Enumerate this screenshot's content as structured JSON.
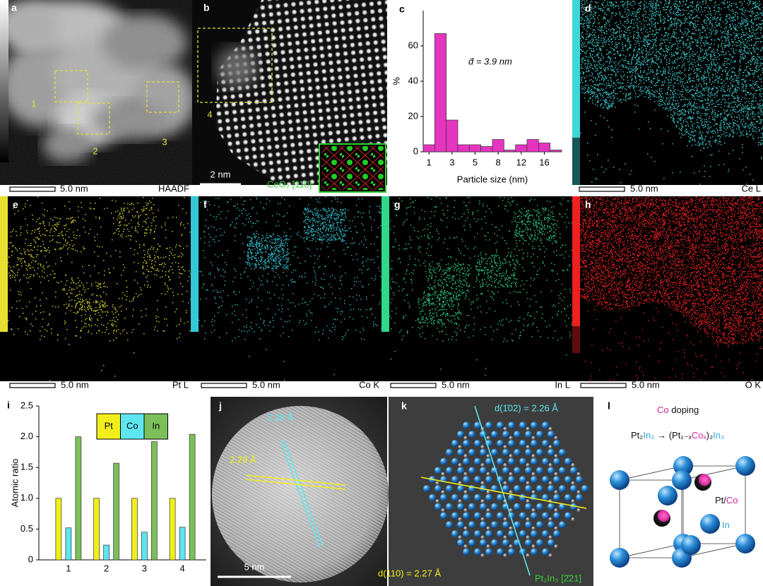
{
  "chart_data": [
    {
      "type": "bar",
      "categories": [
        1,
        null,
        3,
        null,
        5,
        null,
        8,
        null,
        12,
        null,
        16,
        null
      ],
      "values": [
        4,
        67,
        18,
        4,
        4,
        3,
        7,
        1,
        4,
        7,
        5,
        1
      ],
      "color": "#e535c0",
      "ylim": [
        0,
        80
      ],
      "yticks": [
        0,
        20,
        40,
        60
      ],
      "y_label": "%",
      "x_label": "Particle size (nm)",
      "annotation": "d̄ = 3.9 nm"
    },
    {
      "type": "grouped_bar",
      "categories": [
        1,
        2,
        3,
        4
      ],
      "series": [
        {
          "name": "Pt",
          "color": "#f2ee1c",
          "values": [
            1,
            1,
            1,
            1
          ]
        },
        {
          "name": "Co",
          "color": "#5ee6f0",
          "values": [
            0.52,
            0.24,
            0.45,
            0.53
          ]
        },
        {
          "name": "In",
          "color": "#7cbf5a",
          "values": [
            2.0,
            1.57,
            1.92,
            2.04
          ]
        }
      ],
      "ylim": [
        0,
        2.5
      ],
      "yticks": [
        0,
        0.5,
        {
          "value": 1,
          "label": "1.0"
        },
        1.5,
        {
          "value": 2,
          "label": "2.0"
        },
        2.5
      ],
      "y_label": "Atomic ratio"
    }
  ],
  "panels": {
    "a": {
      "label": "a",
      "regions": [
        "1",
        "2",
        "3"
      ],
      "scale": "5.0 nm",
      "signal": "HAADF"
    },
    "b": {
      "label": "b",
      "region": "4",
      "scale": "2 nm",
      "zone": "CeO₂ [110]"
    },
    "c": {
      "label": "c"
    },
    "maps": [
      {
        "label": "d",
        "scale": "5.0 nm",
        "signal": "Ce  L",
        "color": "#3fd6d8"
      },
      {
        "label": "e",
        "scale": "5.0 nm",
        "signal": "Pt  L",
        "color": "#e8e030"
      },
      {
        "label": "f",
        "scale": "5.0 nm",
        "signal": "Co  K",
        "color": "#34c8d6"
      },
      {
        "label": "g",
        "scale": "5.0 nm",
        "signal": "In  L",
        "color": "#2fd88a"
      },
      {
        "label": "h",
        "scale": "5.0 nm",
        "signal": "O  K",
        "color": "#ee2020"
      }
    ],
    "i": {
      "label": "i"
    },
    "j": {
      "label": "j",
      "spacing_1": "2.28 Å",
      "spacing_2": "2.29 Å",
      "scale": "5 nm"
    },
    "k": {
      "label": "k",
      "plane_1": "d(1̄02) = 2.26 Å",
      "plane_2": "d(110) = 2.27 Å",
      "zone": "Pt₂In₃ [2̄21]"
    },
    "l": {
      "label": "l",
      "doping": [
        {
          "text": "Co",
          "color": "#d6239b"
        },
        {
          "text": " doping",
          "color": "#111111"
        }
      ],
      "formula": [
        {
          "text": "Pt₂",
          "color": "#111111"
        },
        {
          "text": "In₃",
          "color": "#2ea8d8"
        },
        {
          "text": " → (Pt₁₋ₓ",
          "color": "#111111"
        },
        {
          "text": "Coₓ",
          "color": "#d6239b"
        },
        {
          "text": ")₂",
          "color": "#111111"
        },
        {
          "text": "In₃",
          "color": "#2ea8d8"
        }
      ],
      "site_1": [
        {
          "text": "Pt/",
          "color": "#111111"
        },
        {
          "text": "Co",
          "color": "#d6239b"
        }
      ],
      "site_2": [
        {
          "text": "In",
          "color": "#2ea8d8"
        }
      ]
    }
  }
}
